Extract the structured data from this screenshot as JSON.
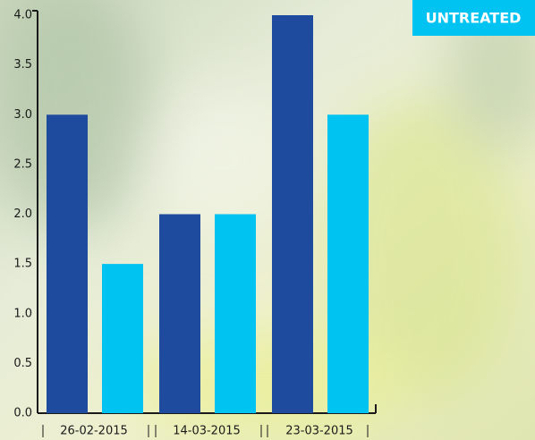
{
  "chart_data": {
    "type": "bar",
    "categories": [
      "26-02-2015",
      "14-03-2015",
      "23-03-2015"
    ],
    "series": [
      {
        "color": "#1f4b9f",
        "values": [
          3,
          2,
          4
        ]
      },
      {
        "name": "UNTREATED",
        "color": "#00c3f2",
        "values": [
          1.5,
          2,
          3
        ]
      }
    ],
    "ylim": [
      0,
      4
    ],
    "yticks": [
      {
        "value": 0,
        "label": "0.0"
      },
      {
        "value": 0.5,
        "label": "0.5"
      },
      {
        "value": 1,
        "label": "1.0"
      },
      {
        "value": 1.5,
        "label": "1.5"
      },
      {
        "value": 2,
        "label": "2.0"
      },
      {
        "value": 2.5,
        "label": "2.5"
      },
      {
        "value": 3,
        "label": "3.0"
      },
      {
        "value": 3.5,
        "label": "3.5"
      },
      {
        "value": 4,
        "label": "4.0"
      }
    ],
    "legend": "top-right"
  }
}
